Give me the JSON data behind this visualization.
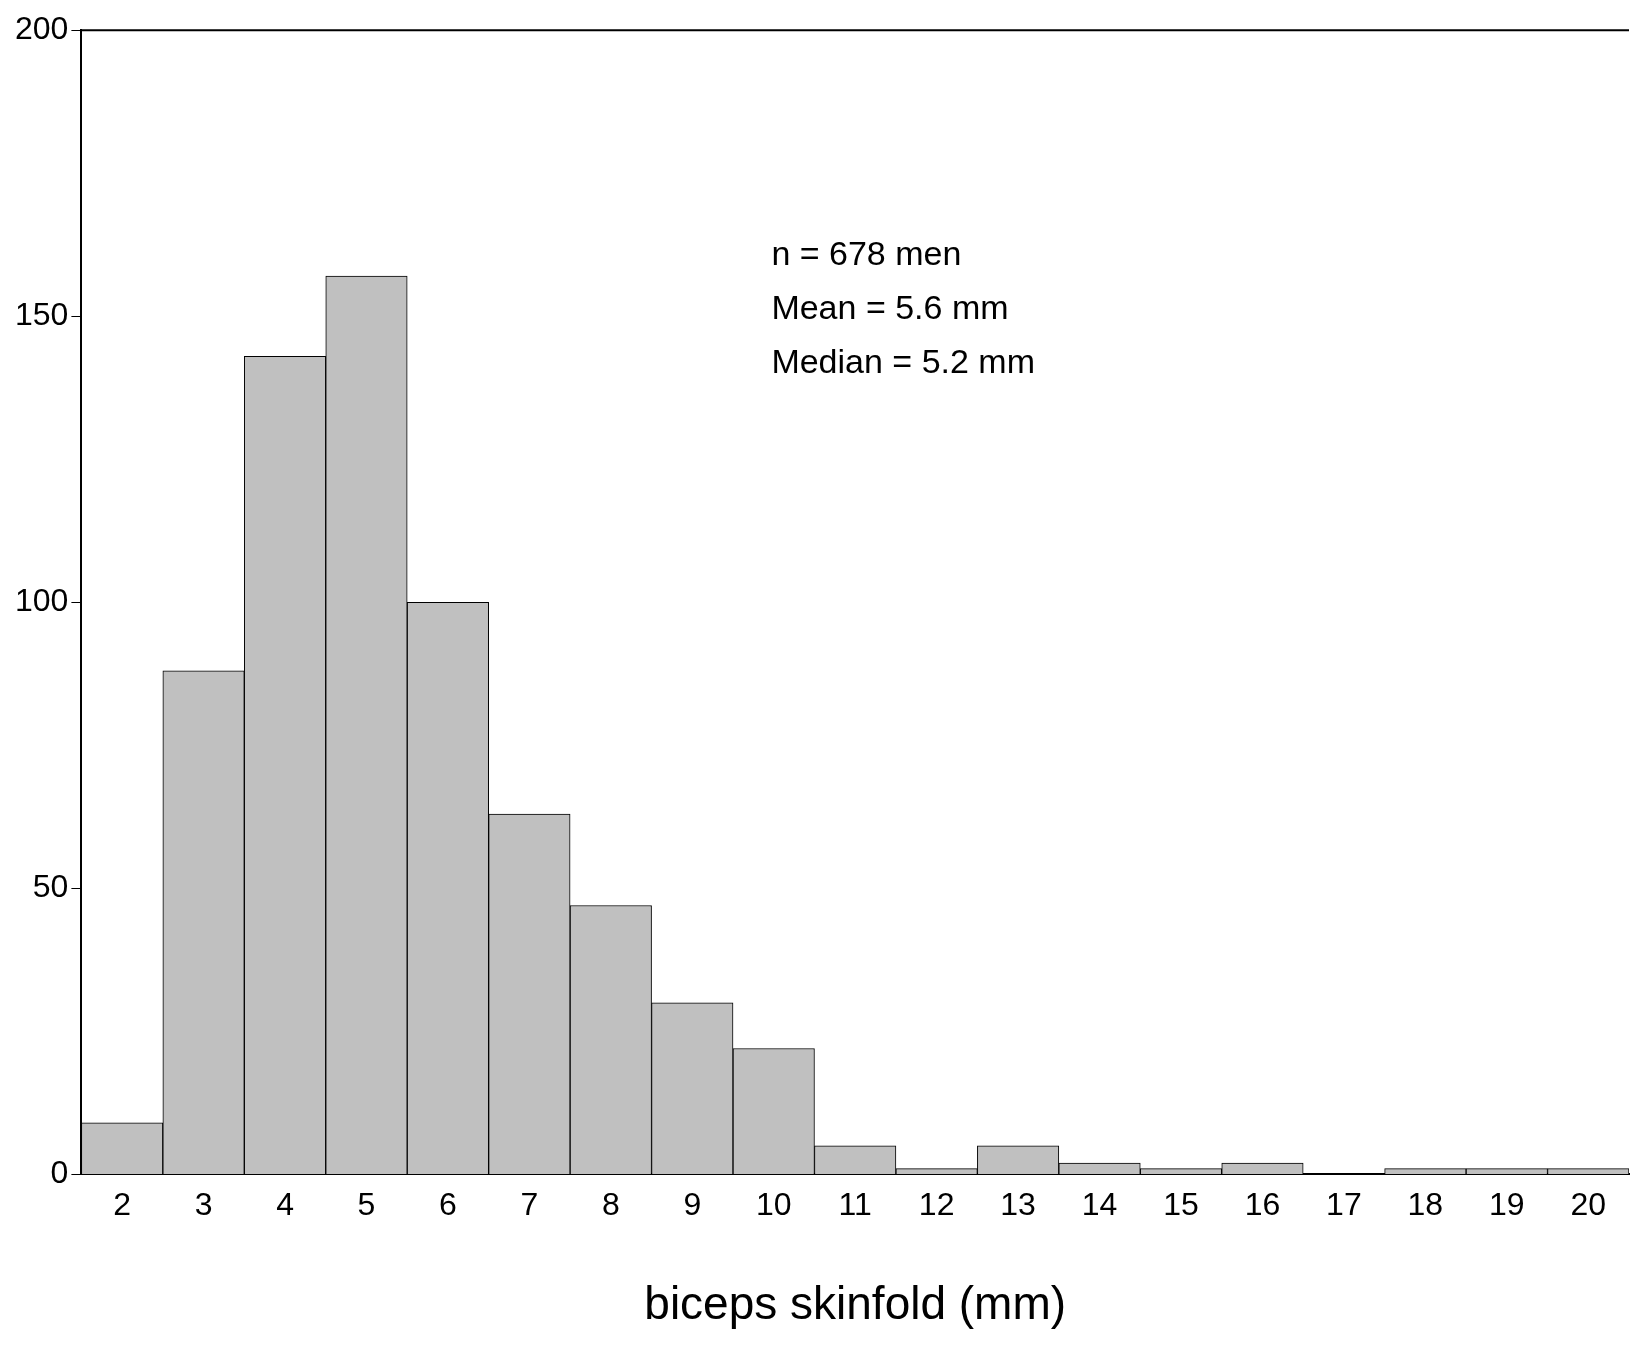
{
  "chart_data": {
    "type": "histogram",
    "xlabel": "biceps skinfold (mm)",
    "bins": [
      1.5,
      2.5,
      3.5,
      4.5,
      5.5,
      6.5,
      7.5,
      8.5,
      9.5,
      10.5,
      11.5,
      12.5,
      13.5,
      14.5,
      15.5,
      16.5,
      17.5,
      18.5,
      19.5,
      20.5
    ],
    "values": [
      9,
      88,
      143,
      157,
      100,
      63,
      47,
      30,
      22,
      5,
      1,
      5,
      2,
      1,
      2,
      0,
      1,
      1,
      1
    ],
    "color": "#c0c0c0",
    "xlim": [
      1.5,
      20.5
    ],
    "xticks": [
      2,
      3,
      4,
      5,
      6,
      7,
      8,
      9,
      10,
      11,
      12,
      13,
      14,
      15,
      16,
      17,
      18,
      19,
      20
    ],
    "ylim": [
      0,
      200
    ],
    "yticks": [
      0,
      50,
      100,
      150,
      200
    ],
    "grid": false,
    "legend": false,
    "annotations": [
      "n = 678 men",
      "Mean = 5.6 mm",
      "Median = 5.2 mm"
    ]
  }
}
